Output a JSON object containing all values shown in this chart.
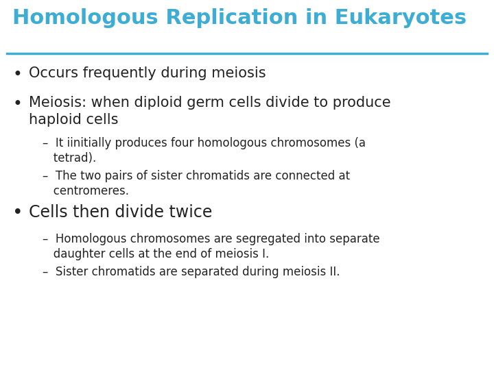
{
  "title": "Homologous Replication in Eukaryotes",
  "title_color": "#3dadd4",
  "title_fontsize": 22,
  "separator_color": "#3dadd4",
  "background_color": "#ffffff",
  "text_color": "#222222",
  "bullet1_text": "Occurs frequently during meiosis",
  "bullet2_text": "Meiosis: when diploid germ cells divide to produce\nhaploid cells",
  "sub1_text": "–  It iinitially produces four homologous chromosomes (a\n   tetrad).",
  "sub2_text": "–  The two pairs of sister chromatids are connected at\n   centromeres.",
  "bullet3_text": "Cells then divide twice",
  "sub3_text": "–  Homologous chromosomes are segregated into separate\n   daughter cells at the end of meiosis I.",
  "sub4_text": "–  Sister chromatids are separated during meiosis II.",
  "bullet_fontsize": 15,
  "sub_fontsize": 12,
  "bullet3_fontsize": 17
}
